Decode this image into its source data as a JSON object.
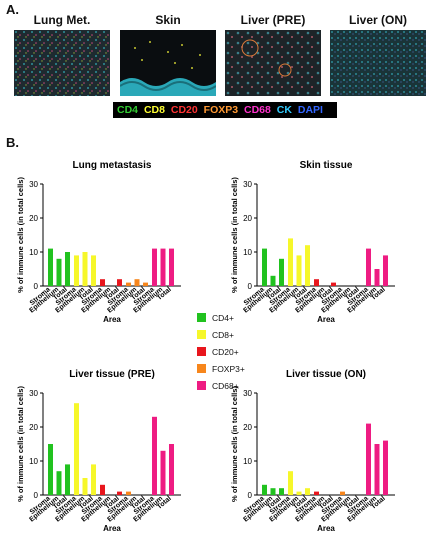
{
  "panel_a_label": "A.",
  "panel_b_label": "B.",
  "images": [
    {
      "title": "Lung Met.",
      "bg": "#1e2a30"
    },
    {
      "title": "Skin",
      "bg": "#0a0d10"
    },
    {
      "title": "Liver (PRE)",
      "bg": "#1d2428"
    },
    {
      "title": "Liver (ON)",
      "bg": "#1a3438"
    }
  ],
  "markers": [
    {
      "label": "CD4",
      "color": "#33cc33"
    },
    {
      "label": "CD8",
      "color": "#ffff33"
    },
    {
      "label": "CD20",
      "color": "#ff3333"
    },
    {
      "label": "FOXP3",
      "color": "#ff9933"
    },
    {
      "label": "CD68",
      "color": "#ff33cc"
    },
    {
      "label": "CK",
      "color": "#33ccff"
    },
    {
      "label": "DAPI",
      "color": "#3366ff"
    }
  ],
  "legend": [
    {
      "label": "CD4+",
      "color": "#21c21f"
    },
    {
      "label": "CD8+",
      "color": "#f6f72a"
    },
    {
      "label": "CD20+",
      "color": "#e8161d"
    },
    {
      "label": "FOXP3+",
      "color": "#f7861c"
    },
    {
      "label": "CD68+",
      "color": "#ee1c82"
    }
  ],
  "chart_data": [
    {
      "type": "bar",
      "title": "Lung metastasis",
      "ylabel": "% of immune cells (in total cells)",
      "xlabel": "Area",
      "ylim": [
        0,
        30
      ],
      "yticks": [
        "0",
        "10",
        "20",
        "30"
      ],
      "categories": [
        "Stroma",
        "Epithelium",
        "Total"
      ],
      "series": [
        {
          "name": "CD4+",
          "values": [
            11,
            8,
            10
          ]
        },
        {
          "name": "CD8+",
          "values": [
            9,
            10,
            9
          ]
        },
        {
          "name": "CD20+",
          "values": [
            2,
            0,
            2
          ]
        },
        {
          "name": "FOXP3+",
          "values": [
            1,
            2,
            1
          ]
        },
        {
          "name": "CD68+",
          "values": [
            11,
            11,
            11
          ]
        }
      ]
    },
    {
      "type": "bar",
      "title": "Skin tissue",
      "ylabel": "% of immune cells (in total cells)",
      "xlabel": "Area",
      "ylim": [
        0,
        30
      ],
      "yticks": [
        "0",
        "10",
        "20",
        "30"
      ],
      "categories": [
        "Stroma",
        "Epithelium",
        "Total"
      ],
      "series": [
        {
          "name": "CD4+",
          "values": [
            11,
            3,
            8
          ]
        },
        {
          "name": "CD8+",
          "values": [
            14,
            9,
            12
          ]
        },
        {
          "name": "CD20+",
          "values": [
            2,
            0,
            1
          ]
        },
        {
          "name": "FOXP3+",
          "values": [
            0,
            0,
            0
          ]
        },
        {
          "name": "CD68+",
          "values": [
            11,
            5,
            9
          ]
        }
      ]
    },
    {
      "type": "bar",
      "title": "Liver tissue (PRE)",
      "ylabel": "% of immune cells (in total cells)",
      "xlabel": "Area",
      "ylim": [
        0,
        30
      ],
      "yticks": [
        "0",
        "10",
        "20",
        "30"
      ],
      "categories": [
        "Stroma",
        "Epithelium",
        "Total"
      ],
      "series": [
        {
          "name": "CD4+",
          "values": [
            15,
            7,
            9
          ]
        },
        {
          "name": "CD8+",
          "values": [
            27,
            5,
            9
          ]
        },
        {
          "name": "CD20+",
          "values": [
            3,
            0,
            1
          ]
        },
        {
          "name": "FOXP3+",
          "values": [
            1,
            0,
            0
          ]
        },
        {
          "name": "CD68+",
          "values": [
            23,
            13,
            15
          ]
        }
      ]
    },
    {
      "type": "bar",
      "title": "Liver tissue (ON)",
      "ylabel": "% of immune cells (in total cells)",
      "xlabel": "Area",
      "ylim": [
        0,
        30
      ],
      "yticks": [
        "0",
        "10",
        "20",
        "30"
      ],
      "categories": [
        "Stroma",
        "Epithelium",
        "Total"
      ],
      "series": [
        {
          "name": "CD4+",
          "values": [
            3,
            2,
            2
          ]
        },
        {
          "name": "CD8+",
          "values": [
            7,
            1,
            2
          ]
        },
        {
          "name": "CD20+",
          "values": [
            1,
            0,
            0
          ]
        },
        {
          "name": "FOXP3+",
          "values": [
            1,
            0,
            0
          ]
        },
        {
          "name": "CD68+",
          "values": [
            21,
            15,
            16
          ]
        }
      ]
    }
  ]
}
